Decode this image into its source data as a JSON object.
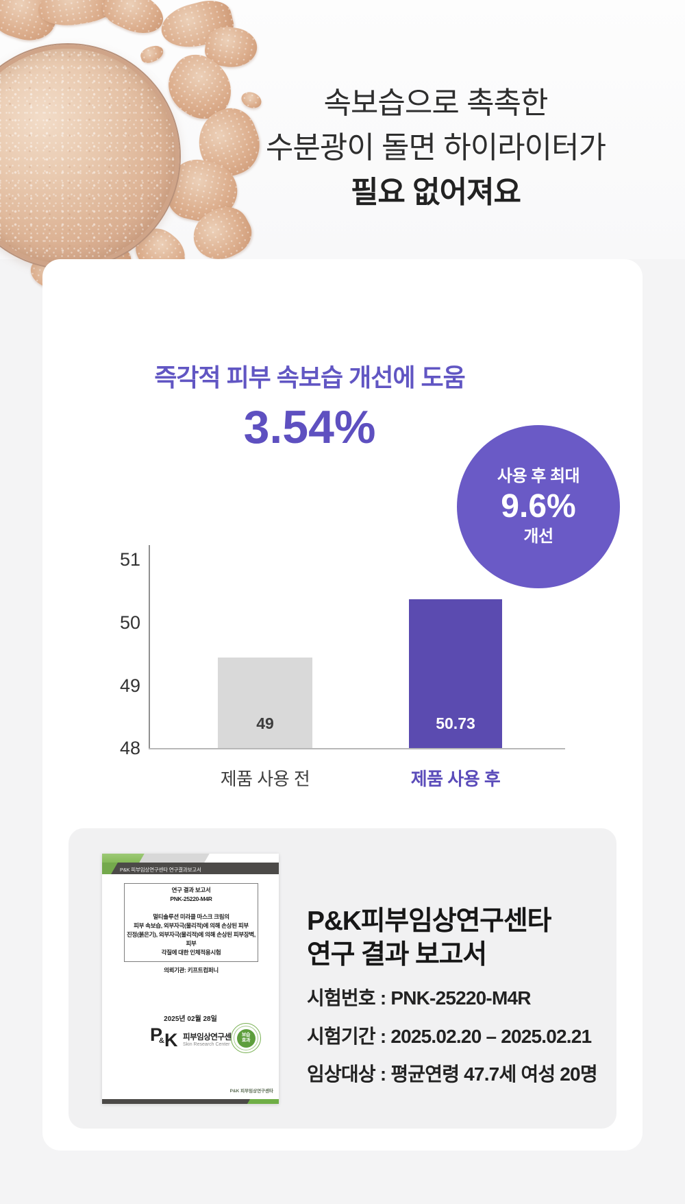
{
  "hero": {
    "line1": "속보습으로 촉촉한",
    "line2": "수분광이 돌면 하이라이터가",
    "line3": "필요 없어져요"
  },
  "result_card": {
    "title": "즉각적 피부 속보습 개선에 도움",
    "main_value": "3.54%",
    "badge": {
      "top": "사용 후 최대",
      "value": "9.6%",
      "bottom": "개선"
    }
  },
  "chart_data": {
    "type": "bar",
    "title": "즉각적 피부 속보습 개선에 도움",
    "categories": [
      "제품 사용 전",
      "제품 사용 후"
    ],
    "values": [
      49,
      50.73
    ],
    "value_labels": [
      "49",
      "50.73"
    ],
    "yticks": [
      "51",
      "50",
      "49",
      "48"
    ],
    "ylim": [
      48,
      51
    ],
    "grid": false,
    "legend": false,
    "bar_colors": [
      "#d9d9d9",
      "#5b4bb0"
    ],
    "category_colors": [
      "#3f3f3f",
      "#5b4cba"
    ],
    "visual_height_fracs": [
      0.446,
      0.733
    ],
    "highlight_index": 1
  },
  "report": {
    "doc": {
      "header": "P&K 피부임상연구센타 연구결과보고서",
      "box_line1": "연구 결과 보고서",
      "box_line2": "PNK-25220-M4R",
      "box_body1": "멀티솔루션 미라클 마스크 크림의",
      "box_body2": "피부 속보습, 외부자극(물리적)에 의해 손상된 피부",
      "box_body3": "진정(붉은기), 외부자극(물리적)에 의해 손상된 피부장벽, 피부",
      "box_body4": "각질에 대한 인체적용시험",
      "box_client": "의뢰기관: 키프트컴퍼니",
      "date": "2025년 02월 28일",
      "logo_p": "P",
      "logo_amp": "&",
      "logo_k": "K",
      "logo_name": "피부임상연구센타",
      "logo_sub": "Skin Research Center",
      "seal_top": "보습",
      "seal_bottom": "효과",
      "mini_logo": "P&K 피부임상연구센타"
    },
    "title_line1": "P&K피부임상연구센타",
    "title_line2": "연구 결과 보고서",
    "detail1": "시험번호 : PNK-25220-M4R",
    "detail2": "시험기간 : 2025.02.20 – 2025.02.21",
    "detail3": "임상대상 : 평균연령 47.7세 여성 20명"
  },
  "colors": {
    "accent_purple": "#6156c3",
    "bar_purple": "#5b4bb0",
    "circle_purple": "#6a5ac6",
    "bar_gray": "#d9d9d9",
    "doc_green": "#6fae46"
  }
}
